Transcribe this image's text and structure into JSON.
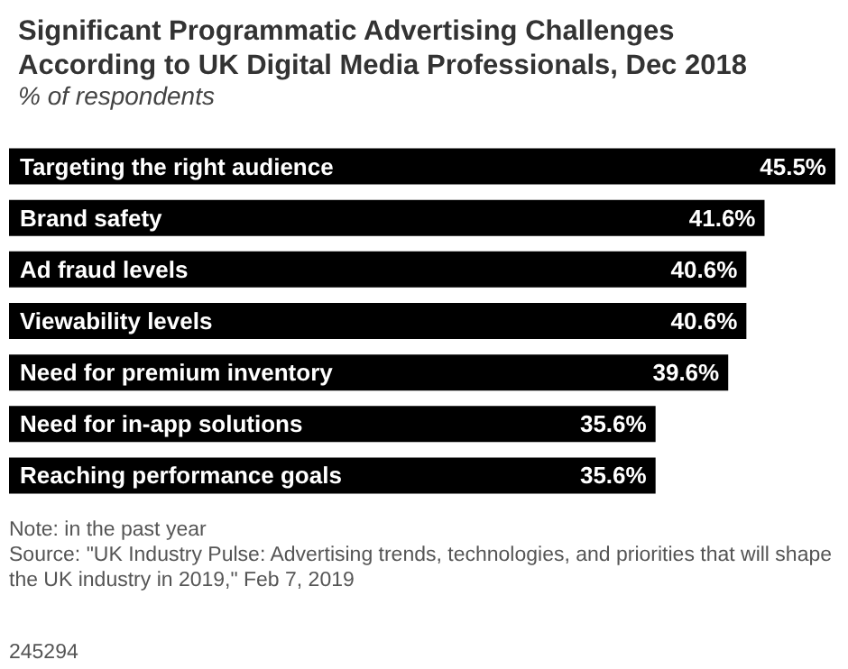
{
  "chart_data": {
    "type": "bar",
    "orientation": "horizontal",
    "title": "Significant Programmatic Advertising Challenges\nAccording to UK Digital Media Professionals, Dec 2018",
    "subtitle": "% of respondents",
    "categories": [
      "Targeting the right audience",
      "Brand safety",
      "Ad fraud levels",
      "Viewability levels",
      "Need for premium inventory",
      "Need for in-app solutions",
      "Reaching performance goals"
    ],
    "values": [
      45.5,
      41.6,
      40.6,
      40.6,
      39.6,
      35.6,
      35.6
    ],
    "color": "#000000",
    "value_labels": [
      "45.5%",
      "41.6%",
      "40.6%",
      "40.6%",
      "39.6%",
      "35.6%",
      "35.6%"
    ],
    "annotations": [
      "Note: in the past year",
      "Source: \"UK Industry Pulse: Advertising trends, technologies, and priorities that will shape the UK industry in 2019,\" Feb 7, 2019",
      "245294"
    ]
  }
}
